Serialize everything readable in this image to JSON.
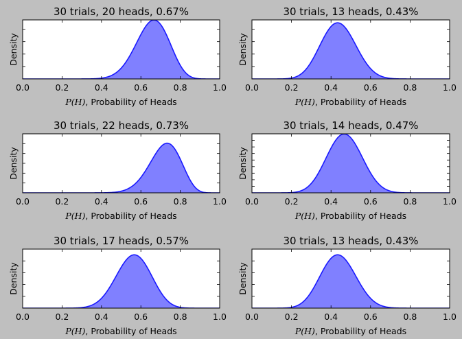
{
  "colors": {
    "background": "#bfbfbf",
    "line": "#1a1aff",
    "fill": "#8080ff",
    "axes": "#ffffff"
  },
  "chart_data": [
    {
      "type": "area",
      "title": "30 trials, 20 heads, 0.67%",
      "trials": 30,
      "heads": 20,
      "xlabel_math": "P(H)",
      "xlabel": ", Probability of Heads",
      "ylabel": "Density",
      "xlim": [
        0,
        1
      ],
      "ylim": [
        0,
        4.75
      ],
      "y_tick_step": 1,
      "xticks": [
        "0.0",
        "0.2",
        "0.4",
        "0.6",
        "0.8",
        "1.0"
      ]
    },
    {
      "type": "area",
      "title": "30 trials, 13 heads, 0.43%",
      "trials": 30,
      "heads": 13,
      "xlabel_math": "P(H)",
      "xlabel": ", Probability of Heads",
      "ylabel": "Density",
      "xlim": [
        0,
        1
      ],
      "ylim": [
        0,
        4.75
      ],
      "y_tick_step": 1,
      "xticks": [
        "0.0",
        "0.2",
        "0.4",
        "0.6",
        "0.8",
        "1.0"
      ]
    },
    {
      "type": "area",
      "title": "30 trials, 22 heads, 0.73%",
      "trials": 30,
      "heads": 22,
      "xlabel_math": "P(H)",
      "xlabel": ", Probability of Heads",
      "ylabel": "Density",
      "xlim": [
        0,
        1
      ],
      "ylim": [
        0,
        6
      ],
      "y_tick_step": 1,
      "xticks": [
        "0.0",
        "0.2",
        "0.4",
        "0.6",
        "0.8",
        "1.0"
      ]
    },
    {
      "type": "area",
      "title": "30 trials, 14 heads, 0.47%",
      "trials": 30,
      "heads": 14,
      "xlabel_math": "P(H)",
      "xlabel": ", Probability of Heads",
      "ylabel": "Density",
      "xlim": [
        0,
        1
      ],
      "ylim": [
        0,
        4.5
      ],
      "y_tick_step": 0.5,
      "xticks": [
        "0.0",
        "0.2",
        "0.4",
        "0.6",
        "0.8",
        "1.0"
      ]
    },
    {
      "type": "area",
      "title": "30 trials, 17 heads, 0.57%",
      "trials": 30,
      "heads": 17,
      "xlabel_math": "P(H)",
      "xlabel": ", Probability of Heads",
      "ylabel": "Density",
      "xlim": [
        0,
        1
      ],
      "ylim": [
        0,
        5
      ],
      "y_tick_step": 1,
      "xticks": [
        "0.0",
        "0.2",
        "0.4",
        "0.6",
        "0.8",
        "1.0"
      ]
    },
    {
      "type": "area",
      "title": "30 trials, 13 heads, 0.43%",
      "trials": 30,
      "heads": 13,
      "xlabel_math": "P(H)",
      "xlabel": ", Probability of Heads",
      "ylabel": "Density",
      "xlim": [
        0,
        1
      ],
      "ylim": [
        0,
        5
      ],
      "y_tick_step": 1,
      "xticks": [
        "0.0",
        "0.2",
        "0.4",
        "0.6",
        "0.8",
        "1.0"
      ]
    }
  ]
}
